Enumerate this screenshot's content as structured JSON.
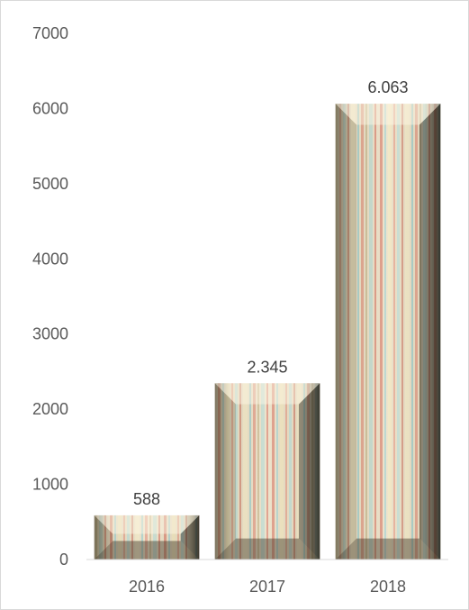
{
  "chart_data": {
    "type": "bar",
    "categories": [
      "2016",
      "2017",
      "2018"
    ],
    "values": [
      588,
      2345,
      6063
    ],
    "data_labels": [
      "588",
      "2.345",
      "6.063"
    ],
    "ylim": [
      0,
      7000
    ],
    "y_ticks": [
      0,
      1000,
      2000,
      3000,
      4000,
      5000,
      6000,
      7000
    ],
    "y_tick_labels": [
      "0",
      "1000",
      "2000",
      "3000",
      "4000",
      "5000",
      "6000",
      "7000"
    ],
    "grid": false,
    "legend": "none",
    "title": "",
    "xlabel": "",
    "ylabel": ""
  },
  "colors": {
    "axis": "#d9d9d9",
    "tick_text": "#595959",
    "label_text": "#404040",
    "bar_base": "#e8dcc0"
  }
}
